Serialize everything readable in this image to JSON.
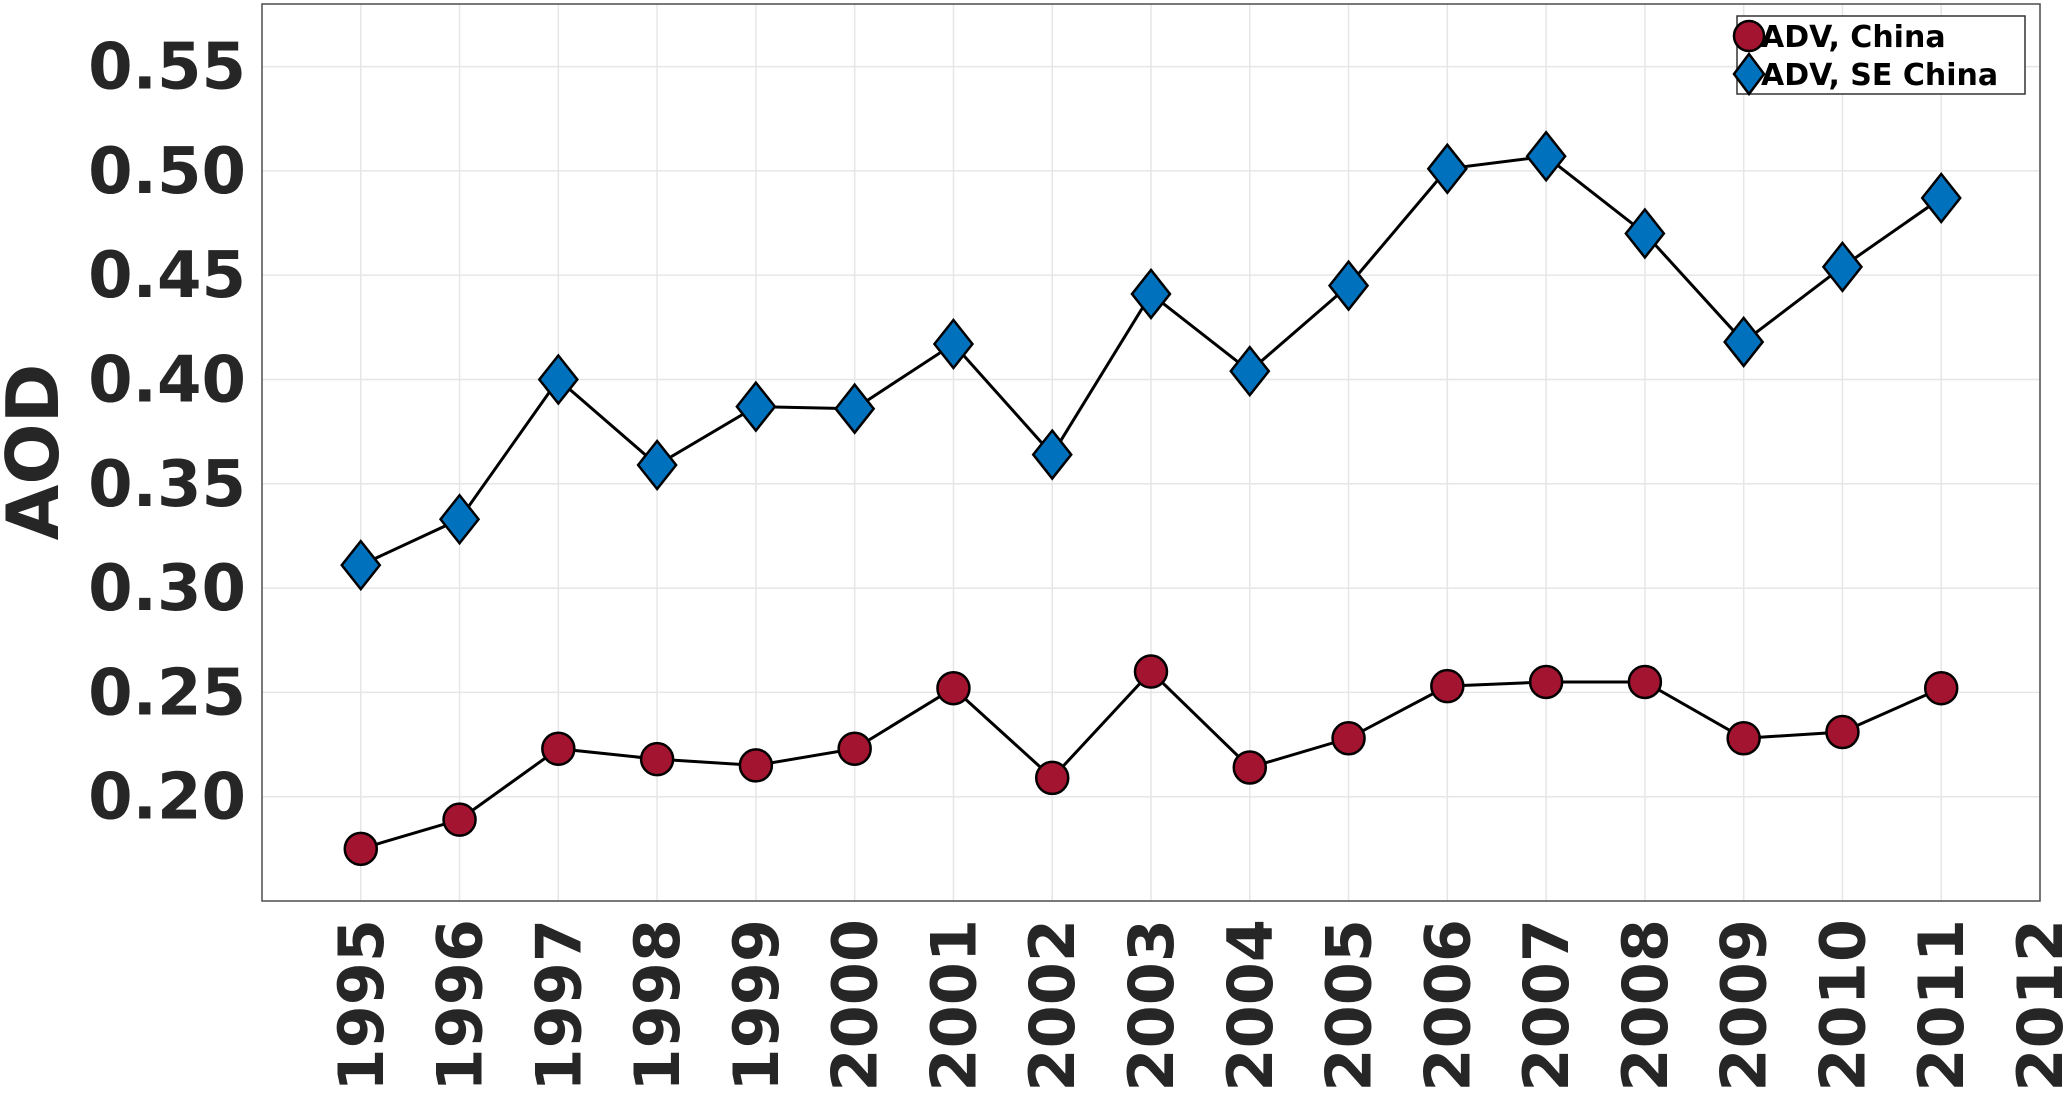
{
  "chart_data": {
    "type": "line",
    "title": "",
    "xlabel": "",
    "ylabel": "AOD",
    "x": [
      1995,
      1996,
      1997,
      1998,
      1999,
      2000,
      2001,
      2002,
      2003,
      2004,
      2005,
      2006,
      2007,
      2008,
      2009,
      2010,
      2011
    ],
    "xticks": [
      "1995",
      "1996",
      "1997",
      "1998",
      "1999",
      "2000",
      "2001",
      "2002",
      "2003",
      "2004",
      "2005",
      "2006",
      "2007",
      "2008",
      "2009",
      "2010",
      "2011",
      "2012"
    ],
    "yticks": [
      "0.20",
      "0.25",
      "0.30",
      "0.35",
      "0.40",
      "0.45",
      "0.50",
      "0.55"
    ],
    "xlim": [
      1994,
      2012
    ],
    "ylim": [
      0.15,
      0.58
    ],
    "grid": true,
    "legend_position": "top-right",
    "series": [
      {
        "name": "ADV, China",
        "marker": "circle",
        "color": "#a2142f",
        "values": [
          0.175,
          0.189,
          0.223,
          0.218,
          0.215,
          0.223,
          0.252,
          0.209,
          0.26,
          0.214,
          0.228,
          0.253,
          0.255,
          0.255,
          0.228,
          0.231,
          0.252
        ]
      },
      {
        "name": "ADV, SE China",
        "marker": "diamond",
        "color": "#0072bd",
        "values": [
          0.311,
          0.333,
          0.4,
          0.359,
          0.387,
          0.386,
          0.417,
          0.364,
          0.441,
          0.404,
          0.445,
          0.501,
          0.507,
          0.47,
          0.418,
          0.454,
          0.487
        ]
      }
    ]
  }
}
